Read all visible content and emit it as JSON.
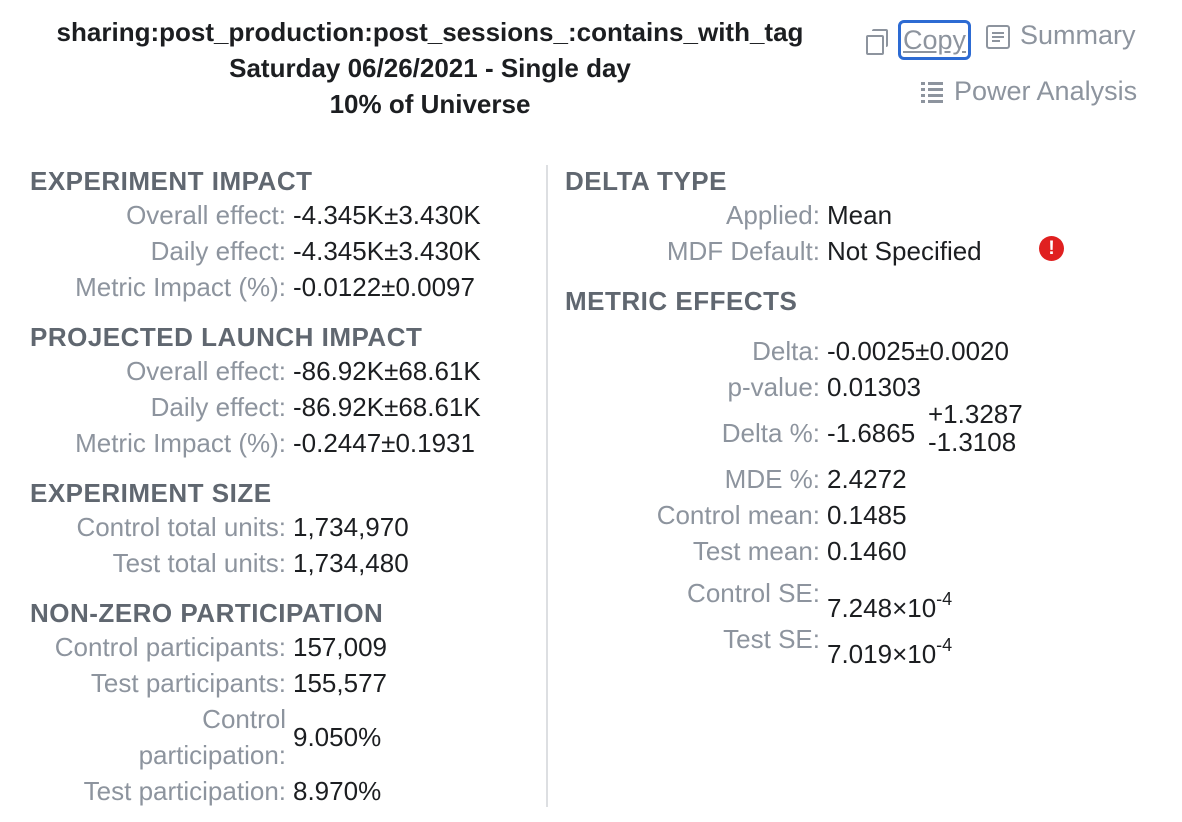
{
  "header": {
    "title": "sharing:post_production:post_sessions_:contains_with_tag",
    "date": "Saturday 06/26/2021 - Single day",
    "universe": "10% of Universe"
  },
  "actions": {
    "copy": "Copy",
    "summary": "Summary",
    "power": "Power Analysis"
  },
  "left": {
    "experiment_impact": {
      "title": "EXPERIMENT IMPACT",
      "rows": [
        {
          "label": "Overall effect:",
          "value": "-4.345K±3.430K"
        },
        {
          "label": "Daily effect:",
          "value": "-4.345K±3.430K"
        },
        {
          "label": "Metric Impact (%):",
          "value": "-0.0122±0.0097"
        }
      ]
    },
    "projected_launch_impact": {
      "title": "PROJECTED LAUNCH IMPACT",
      "rows": [
        {
          "label": "Overall effect:",
          "value": "-86.92K±68.61K"
        },
        {
          "label": "Daily effect:",
          "value": "-86.92K±68.61K"
        },
        {
          "label": "Metric Impact (%):",
          "value": "-0.2447±0.1931"
        }
      ]
    },
    "experiment_size": {
      "title": "EXPERIMENT SIZE",
      "rows": [
        {
          "label": "Control total units:",
          "value": "1,734,970"
        },
        {
          "label": "Test total units:",
          "value": "1,734,480"
        }
      ]
    },
    "non_zero_participation": {
      "title": "NON-ZERO PARTICIPATION",
      "rows": [
        {
          "label": "Control participants:",
          "value": "157,009"
        },
        {
          "label": "Test participants:",
          "value": "155,577"
        },
        {
          "label_line1": "Control",
          "label_line2": "participation:",
          "value": "9.050%"
        },
        {
          "label": "Test participation:",
          "value": "8.970%"
        }
      ]
    }
  },
  "right": {
    "delta_type": {
      "title": "DELTA TYPE",
      "rows": [
        {
          "label": "Applied:",
          "value": "Mean"
        },
        {
          "label": "MDF Default:",
          "value": "Not Specified"
        }
      ],
      "warning_icon": "!"
    },
    "metric_effects": {
      "title": "METRIC EFFECTS",
      "delta": {
        "label": "Delta:",
        "value": "-0.0025±0.0020"
      },
      "p_value": {
        "label": "p-value:",
        "value": "0.01303"
      },
      "delta_pct": {
        "label": "Delta %:",
        "value": "-1.6865",
        "upper": "+1.3287",
        "lower": "-1.3108"
      },
      "mde": {
        "label": "MDE %:",
        "value": "2.4272"
      },
      "control_mean": {
        "label": "Control mean:",
        "value": "0.1485"
      },
      "test_mean": {
        "label": "Test mean:",
        "value": "0.1460"
      },
      "control_se": {
        "label": "Control SE:",
        "mantissa": "7.248×10",
        "exponent": "-4"
      },
      "test_se": {
        "label": "Test SE:",
        "mantissa": "7.019×10",
        "exponent": "-4"
      }
    }
  }
}
